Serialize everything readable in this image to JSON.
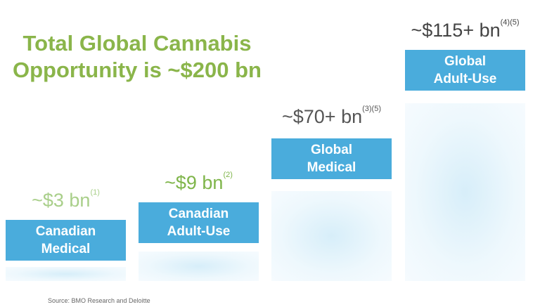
{
  "title": [
    "Total Global Cannabis",
    "Opportunity is ~$200 bn"
  ],
  "segments": [
    {
      "value": "~$3 bn",
      "note": "(1)",
      "label": [
        "Canadian",
        "Medical"
      ]
    },
    {
      "value": "~$9 bn",
      "note": "(2)",
      "label": [
        "Canadian",
        "Adult-Use"
      ]
    },
    {
      "value": "~$70+ bn",
      "note": "(3)(5)",
      "label": [
        "Global",
        "Medical"
      ]
    },
    {
      "value": "~$115+ bn",
      "note": "(4)(5)",
      "label": [
        "Global",
        "Adult-Use"
      ]
    }
  ],
  "source": "Source: BMO Research and Deloitte"
}
